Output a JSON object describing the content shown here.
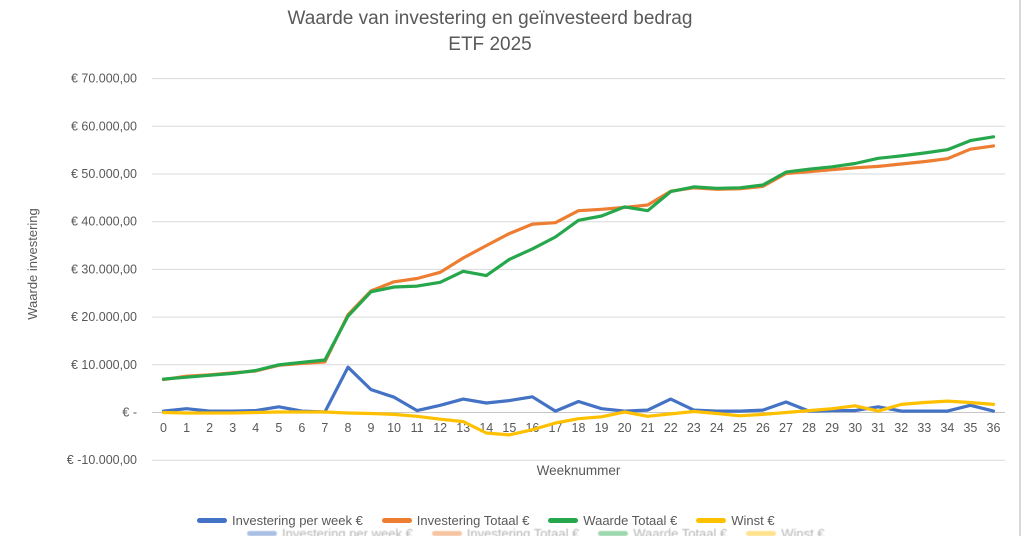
{
  "chart": {
    "title_line1": "Waarde van investering en geïnvesteerd bedrag",
    "title_line2": "ETF 2025",
    "y_axis_title": "Waarde investering",
    "x_axis_title": "Weeknummer",
    "y_tick_labels": [
      "€ 70.000,00",
      "€ 60.000,00",
      "€ 50.000,00",
      "€ 40.000,00",
      "€ 30.000,00",
      "€ 20.000,00",
      "€ 10.000,00",
      "€ -",
      "€ -10.000,00"
    ],
    "text_color": "#595959",
    "gridline_color": "#d9d9d9",
    "zero_line_color": "#c6c6c6"
  },
  "chart_data": {
    "type": "line",
    "title": "Waarde van investering en geïnvesteerd bedrag — ETF 2025",
    "xlabel": "Weeknummer",
    "ylabel": "Waarde investering",
    "ylim": [
      -10000,
      70000
    ],
    "y_tick_step": 10000,
    "grid": "horizontal",
    "legend_position": "bottom",
    "x": [
      0,
      1,
      2,
      3,
      4,
      5,
      6,
      7,
      8,
      9,
      10,
      11,
      12,
      13,
      14,
      15,
      16,
      17,
      18,
      19,
      20,
      21,
      22,
      23,
      24,
      25,
      26,
      27,
      28,
      29,
      30,
      31,
      32,
      33,
      34,
      35,
      36
    ],
    "series": [
      {
        "name": "Investering per week €",
        "color": "#4472C4",
        "values": [
          300,
          800,
          300,
          300,
          400,
          1200,
          300,
          100,
          9500,
          4800,
          3200,
          400,
          1500,
          2800,
          2000,
          2500,
          3300,
          300,
          2300,
          800,
          300,
          500,
          2800,
          500,
          300,
          300,
          500,
          2200,
          300,
          400,
          400,
          1200,
          300,
          300,
          300,
          1500,
          300
        ]
      },
      {
        "name": "Investering Totaal €",
        "color": "#ED7D31",
        "values": [
          6900,
          7600,
          7900,
          8300,
          8700,
          9900,
          10300,
          10600,
          20500,
          25500,
          27400,
          28100,
          29400,
          32400,
          35000,
          37500,
          39500,
          39800,
          42300,
          42600,
          43000,
          43500,
          46400,
          47100,
          46800,
          46900,
          47400,
          50100,
          50500,
          50900,
          51300,
          51600,
          52100,
          52600,
          53200,
          55200,
          55900
        ]
      },
      {
        "name": "Waarde Totaal €",
        "color": "#27A74B",
        "values": [
          7000,
          7400,
          7800,
          8200,
          8800,
          10000,
          10500,
          11000,
          20200,
          25300,
          26300,
          26500,
          27300,
          29600,
          28700,
          32100,
          34300,
          36800,
          40300,
          41200,
          43100,
          42300,
          46300,
          47300,
          47000,
          47100,
          47700,
          50400,
          51000,
          51500,
          52200,
          53300,
          53800,
          54400,
          55100,
          57000,
          57800
        ]
      },
      {
        "name": "Winst €",
        "color": "#FFC000",
        "values": [
          0,
          -100,
          -100,
          -100,
          0,
          100,
          100,
          100,
          -100,
          -200,
          -400,
          -800,
          -1400,
          -1900,
          -4300,
          -4700,
          -3600,
          -2200,
          -1300,
          -900,
          100,
          -800,
          -300,
          200,
          -200,
          -700,
          -400,
          0,
          400,
          800,
          1400,
          300,
          1700,
          2100,
          2400,
          2100,
          1700
        ]
      }
    ]
  }
}
